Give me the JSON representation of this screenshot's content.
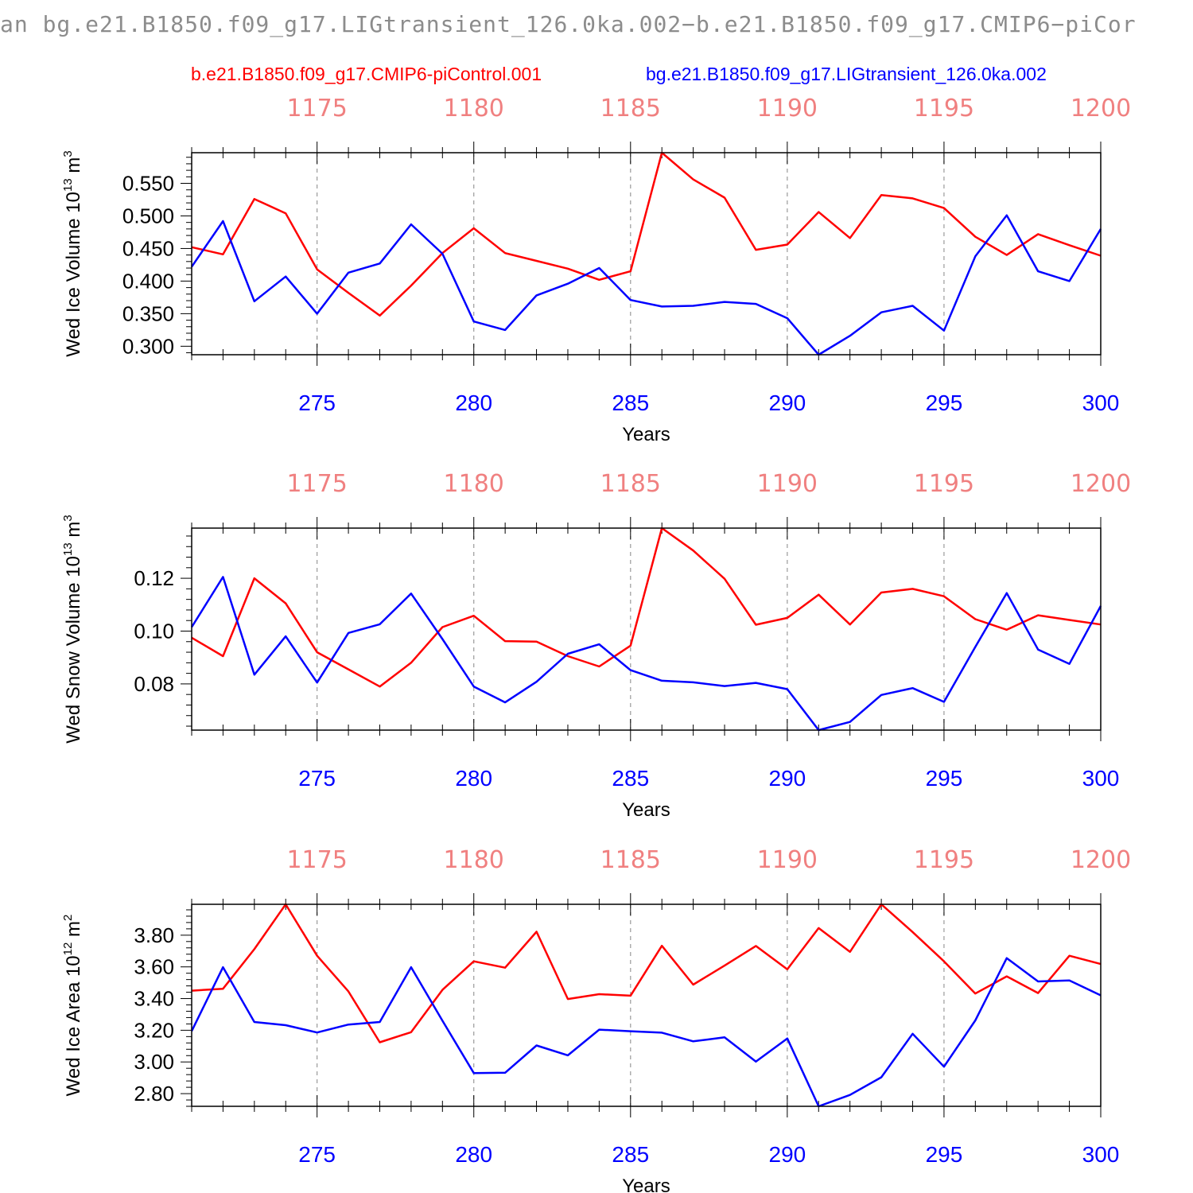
{
  "page_title": "an bg.e21.B1850.f09_g17.LIGtransient_126.0ka.002−b.e21.B1850.f09_g17.CMIP6−piCor",
  "legend": {
    "control": "b.e21.B1850.f09_g17.CMIP6-piControl.001",
    "transient": "bg.e21.B1850.f09_g17.LIGtransient_126.0ka.002"
  },
  "colors": {
    "control": "#ff0000",
    "transient": "#0000ff",
    "top_axis": "#f08080",
    "grid": "#9a9a9a"
  },
  "chart_data": [
    {
      "type": "line",
      "ylabel": "Wed Ice Volume 10",
      "ylabel_sup": "13",
      "ylabel_unit": " m",
      "ylabel_unit_sup": "3",
      "xlabel": "Years",
      "xlim": [
        271,
        300
      ],
      "ylim": [
        0.287,
        0.597
      ],
      "yticks": [
        0.3,
        0.35,
        0.4,
        0.45,
        0.5,
        0.55
      ],
      "ytick_labels": [
        "0.300",
        "0.350",
        "0.400",
        "0.450",
        "0.500",
        "0.550"
      ],
      "yminor_step": 0.01,
      "xticks": [
        275,
        280,
        285,
        290,
        295,
        300
      ],
      "xtick_labels": [
        "275",
        "280",
        "285",
        "290",
        "295",
        "300"
      ],
      "top_ticks": [
        275,
        280,
        285,
        290,
        295,
        300
      ],
      "top_tick_labels": [
        "1175",
        "1180",
        "1185",
        "1190",
        "1195",
        "1200"
      ],
      "grid": "vertical-dashed",
      "x": [
        271,
        272,
        273,
        274,
        275,
        276,
        277,
        278,
        279,
        280,
        281,
        282,
        283,
        284,
        285,
        286,
        287,
        288,
        289,
        290,
        291,
        292,
        293,
        294,
        295,
        296,
        297,
        298,
        299,
        300
      ],
      "series": [
        {
          "name": "b.e21.B1850.f09_g17.CMIP6-piControl.001",
          "color": "#ff0000",
          "values": [
            0.452,
            0.441,
            0.526,
            0.504,
            0.418,
            0.382,
            0.347,
            0.393,
            0.443,
            0.481,
            0.443,
            0.431,
            0.419,
            0.402,
            0.415,
            0.597,
            0.556,
            0.528,
            0.448,
            0.456,
            0.506,
            0.466,
            0.532,
            0.527,
            0.512,
            0.468,
            0.44,
            0.472,
            0.455,
            0.439
          ]
        },
        {
          "name": "bg.e21.B1850.f09_g17.LIGtransient_126.0ka.002",
          "color": "#0000ff",
          "values": [
            0.422,
            0.492,
            0.369,
            0.407,
            0.35,
            0.413,
            0.427,
            0.487,
            0.442,
            0.338,
            0.325,
            0.378,
            0.396,
            0.42,
            0.371,
            0.361,
            0.362,
            0.368,
            0.365,
            0.343,
            0.287,
            0.316,
            0.352,
            0.362,
            0.324,
            0.438,
            0.501,
            0.415,
            0.4,
            0.48
          ]
        }
      ]
    },
    {
      "type": "line",
      "ylabel": "Wed Snow Volume 10",
      "ylabel_sup": "13",
      "ylabel_unit": " m",
      "ylabel_unit_sup": "3",
      "xlabel": "Years",
      "xlim": [
        271,
        300
      ],
      "ylim": [
        0.0625,
        0.139
      ],
      "yticks": [
        0.08,
        0.1,
        0.12
      ],
      "ytick_labels": [
        "0.08",
        "0.10",
        "0.12"
      ],
      "yminor_step": 0.004,
      "xticks": [
        275,
        280,
        285,
        290,
        295,
        300
      ],
      "xtick_labels": [
        "275",
        "280",
        "285",
        "290",
        "295",
        "300"
      ],
      "top_ticks": [
        275,
        280,
        285,
        290,
        295,
        300
      ],
      "top_tick_labels": [
        "1175",
        "1180",
        "1185",
        "1190",
        "1195",
        "1200"
      ],
      "grid": "vertical-dashed",
      "x": [
        271,
        272,
        273,
        274,
        275,
        276,
        277,
        278,
        279,
        280,
        281,
        282,
        283,
        284,
        285,
        286,
        287,
        288,
        289,
        290,
        291,
        292,
        293,
        294,
        295,
        296,
        297,
        298,
        299,
        300
      ],
      "series": [
        {
          "name": "b.e21.B1850.f09_g17.CMIP6-piControl.001",
          "color": "#ff0000",
          "values": [
            0.0975,
            0.0905,
            0.12,
            0.1105,
            0.092,
            0.0855,
            0.079,
            0.088,
            0.1015,
            0.1058,
            0.0962,
            0.096,
            0.0905,
            0.0866,
            0.0945,
            0.139,
            0.1305,
            0.1198,
            0.1024,
            0.105,
            0.1138,
            0.1025,
            0.1146,
            0.116,
            0.1132,
            0.1045,
            0.1005,
            0.106,
            0.1042,
            0.1025
          ]
        },
        {
          "name": "bg.e21.B1850.f09_g17.LIGtransient_126.0ka.002",
          "color": "#0000ff",
          "values": [
            0.1015,
            0.1205,
            0.0835,
            0.098,
            0.0805,
            0.0993,
            0.1026,
            0.1142,
            0.097,
            0.079,
            0.073,
            0.0808,
            0.0914,
            0.095,
            0.0852,
            0.0812,
            0.0806,
            0.0792,
            0.0804,
            0.078,
            0.0625,
            0.0656,
            0.0758,
            0.0784,
            0.0732,
            0.094,
            0.1144,
            0.093,
            0.0876,
            0.1095
          ]
        }
      ]
    },
    {
      "type": "line",
      "ylabel": "Wed Ice Area 10",
      "ylabel_sup": "12",
      "ylabel_unit": " m",
      "ylabel_unit_sup": "2",
      "xlabel": "Years",
      "xlim": [
        271,
        300
      ],
      "ylim": [
        2.72,
        3.995
      ],
      "yticks": [
        2.8,
        3.0,
        3.2,
        3.4,
        3.6,
        3.8
      ],
      "ytick_labels": [
        "2.80",
        "3.00",
        "3.20",
        "3.40",
        "3.60",
        "3.80"
      ],
      "yminor_step": 0.04,
      "xticks": [
        275,
        280,
        285,
        290,
        295,
        300
      ],
      "xtick_labels": [
        "275",
        "280",
        "285",
        "290",
        "295",
        "300"
      ],
      "top_ticks": [
        275,
        280,
        285,
        290,
        295,
        300
      ],
      "top_tick_labels": [
        "1175",
        "1180",
        "1185",
        "1190",
        "1195",
        "1200"
      ],
      "grid": "vertical-dashed",
      "x": [
        271,
        272,
        273,
        274,
        275,
        276,
        277,
        278,
        279,
        280,
        281,
        282,
        283,
        284,
        285,
        286,
        287,
        288,
        289,
        290,
        291,
        292,
        293,
        294,
        295,
        296,
        297,
        298,
        299,
        300
      ],
      "series": [
        {
          "name": "b.e21.B1850.f09_g17.CMIP6-piControl.001",
          "color": "#ff0000",
          "values": [
            3.45,
            3.462,
            3.712,
            3.995,
            3.67,
            3.445,
            3.124,
            3.188,
            3.455,
            3.635,
            3.595,
            3.822,
            3.397,
            3.428,
            3.418,
            3.733,
            3.488,
            3.608,
            3.732,
            3.585,
            3.845,
            3.695,
            3.995,
            3.82,
            3.635,
            3.432,
            3.54,
            3.435,
            3.67,
            3.618
          ]
        },
        {
          "name": "bg.e21.B1850.f09_g17.LIGtransient_126.0ka.002",
          "color": "#0000ff",
          "values": [
            3.195,
            3.598,
            3.252,
            3.232,
            3.186,
            3.236,
            3.252,
            3.598,
            3.26,
            2.93,
            2.932,
            3.104,
            3.042,
            3.204,
            3.194,
            3.185,
            3.13,
            3.155,
            3.002,
            3.148,
            2.72,
            2.792,
            2.903,
            3.178,
            2.97,
            3.262,
            3.655,
            3.508,
            3.514,
            3.42
          ]
        }
      ]
    }
  ]
}
